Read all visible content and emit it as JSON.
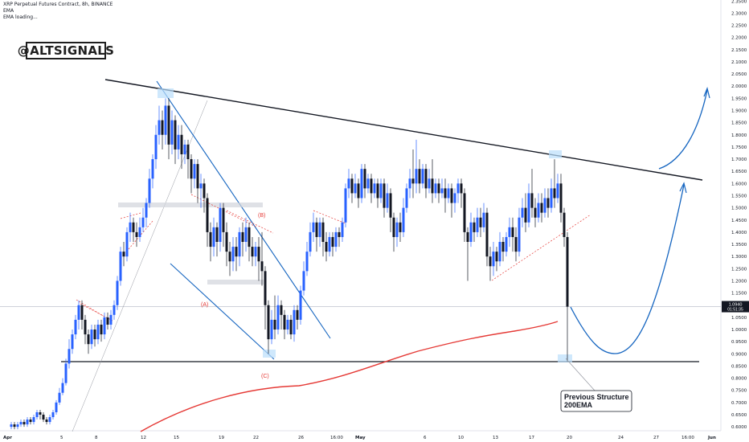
{
  "header": {
    "title": "XRP Perpetual Futures Contract, 8h, BINANCE",
    "indicator_1": "EMA",
    "indicator_2": "EMA loading..."
  },
  "watermark": "@ALTSIGNALS",
  "colors": {
    "up": "#2962ff",
    "down": "#131722",
    "ema": "#e53935",
    "trend": "#1565c0",
    "wave_label": "#e53935"
  },
  "price_label": {
    "value": "1.0940",
    "countdown": "01:51:35"
  },
  "annotation": {
    "line1": "Previous Structure",
    "line2": "200EMA"
  },
  "wave_labels": [
    "(A)",
    "(B)",
    "(C)"
  ],
  "chart_data": {
    "type": "candlestick",
    "y_ticks": [
      "2.3500",
      "2.3000",
      "2.2500",
      "2.2000",
      "2.1500",
      "2.1000",
      "2.0500",
      "2.0000",
      "1.9500",
      "1.9000",
      "1.8500",
      "1.8000",
      "1.7500",
      "1.7000",
      "1.6500",
      "1.6000",
      "1.5500",
      "1.5000",
      "1.4500",
      "1.4000",
      "1.3500",
      "1.3000",
      "1.2500",
      "1.2000",
      "1.1500",
      "1.1000",
      "1.0500",
      "1.0000",
      "0.9500",
      "0.9000",
      "0.8500",
      "0.8000",
      "0.7500",
      "0.7000",
      "0.6500",
      "0.6000"
    ],
    "x_ticks": [
      "Apr",
      "5",
      "8",
      "12",
      "15",
      "19",
      "22",
      "26",
      "16:00",
      "May",
      "6",
      "10",
      "13",
      "17",
      "20",
      "24",
      "27",
      "16:00",
      "Jun"
    ],
    "current_price": 1.094,
    "support_level": 0.868,
    "ylim": [
      0.58,
      2.36
    ]
  }
}
